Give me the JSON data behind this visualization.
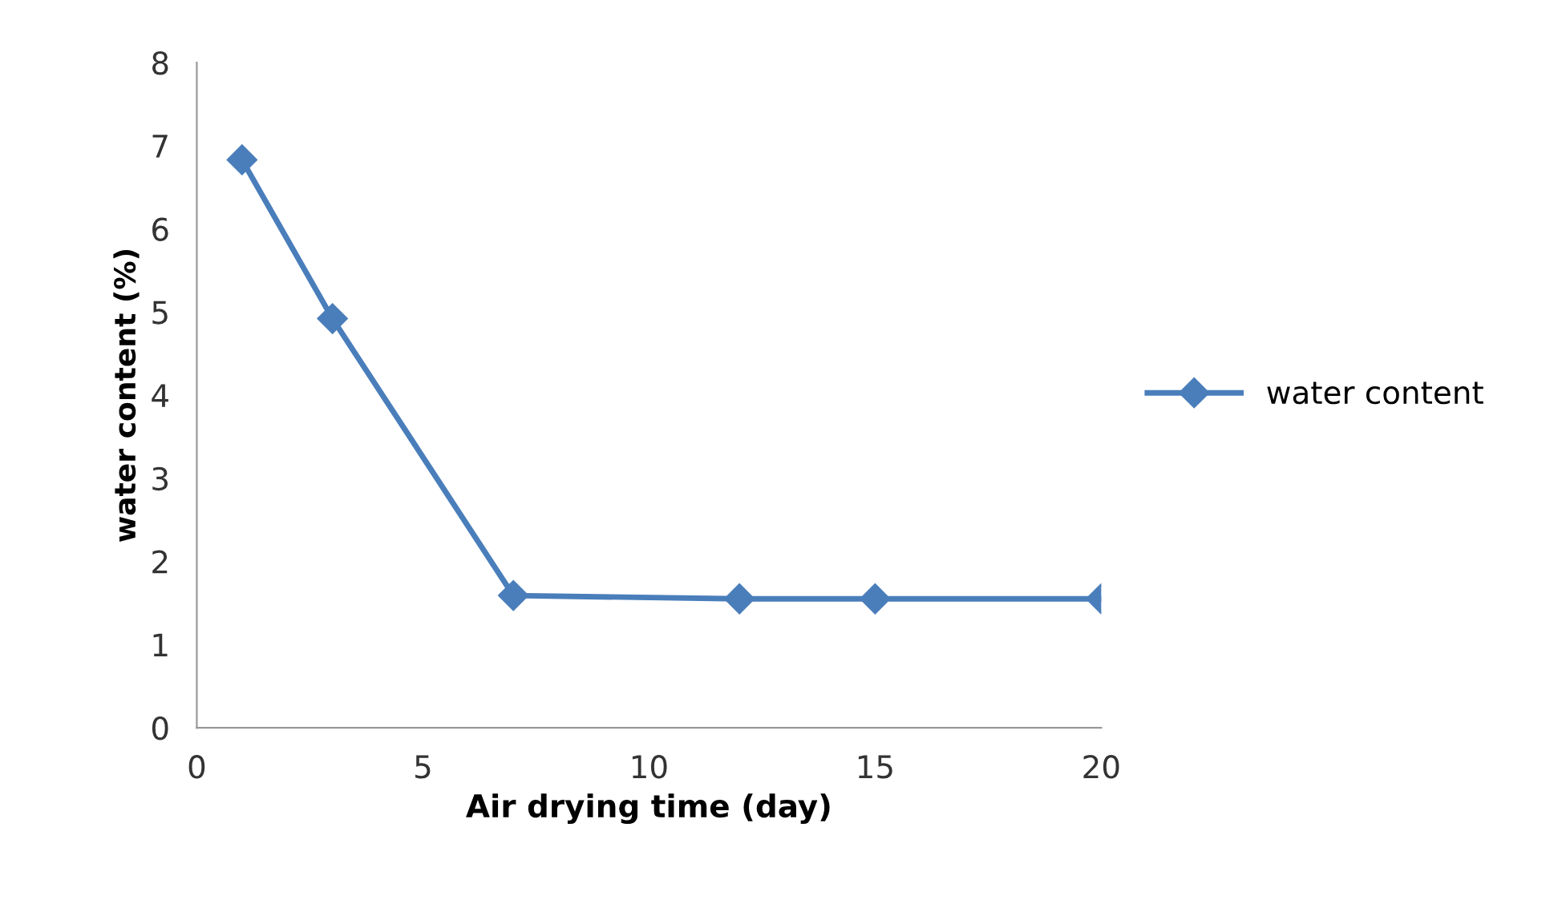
{
  "chart_data": {
    "type": "line",
    "xlabel": "Air drying time (day)",
    "ylabel": "water content (%)",
    "x": [
      1,
      3,
      7,
      12,
      15,
      20
    ],
    "series": [
      {
        "name": "water content",
        "color": "#4a7ebb",
        "values": [
          6.83,
          4.92,
          1.59,
          1.55,
          1.55,
          1.55
        ]
      }
    ],
    "xlim": [
      0,
      20
    ],
    "xticks": [
      0,
      5,
      10,
      15,
      20
    ],
    "ylim": [
      0,
      8
    ],
    "yticks": [
      0,
      1,
      2,
      3,
      4,
      5,
      6,
      7,
      8
    ],
    "grid": false,
    "legend": "right",
    "marker": "diamond",
    "line_style": "solid"
  }
}
